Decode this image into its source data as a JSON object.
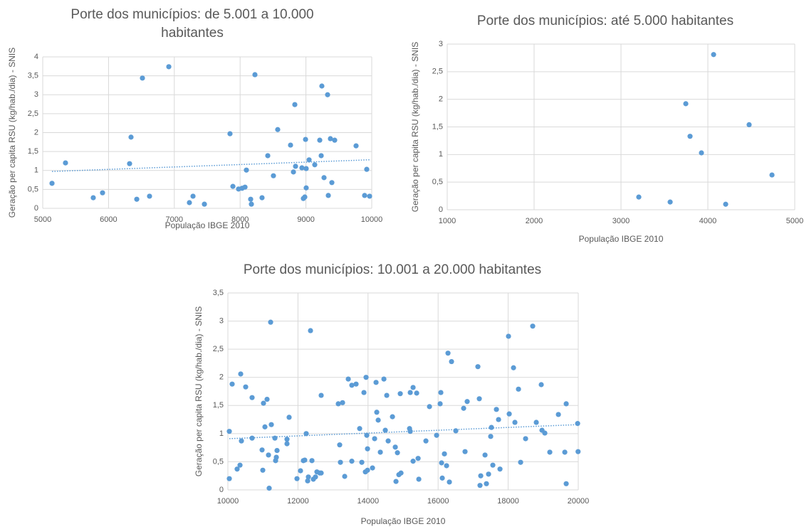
{
  "chart_data": [
    {
      "type": "scatter",
      "title": "Porte dos municípios: de 5.001 a 10.000 habitantes",
      "x_label": "População IBGE 2010",
      "y_label": "Geração per capita RSU (kg/hab./dia) - SNIS",
      "color": "#5b9bd5",
      "grid": true,
      "trendline": true,
      "xlim": [
        5000,
        10000
      ],
      "xticks": [
        5000,
        6000,
        7000,
        8000,
        9000,
        10000
      ],
      "ylim": [
        0,
        4
      ],
      "yticks": [
        0,
        {
          "value": 0.5,
          "label": "0,5"
        },
        1,
        {
          "value": 1.5,
          "label": "1,5"
        },
        2,
        {
          "value": 2.5,
          "label": "2,5"
        },
        3,
        {
          "value": 3.5,
          "label": "3,5"
        },
        4
      ],
      "x": [
        5141,
        5346,
        5768,
        5909,
        6320,
        6342,
        6429,
        6515,
        6623,
        6916,
        7229,
        7284,
        7457,
        7846,
        7890,
        7976,
        8030,
        8074,
        8095,
        8160,
        8171,
        8225,
        8333,
        8420,
        8506,
        8571,
        8766,
        8810,
        8831,
        8842,
        8939,
        8961,
        8983,
        8994,
        9004,
        9004,
        9048,
        9134,
        9210,
        9232,
        9242,
        9275,
        9329,
        9340,
        9372,
        9394,
        9437,
        9762,
        9892,
        9924,
        9968
      ],
      "values": [
        0.66,
        1.2,
        0.28,
        0.41,
        1.18,
        1.88,
        0.24,
        3.44,
        0.32,
        3.74,
        0.15,
        0.32,
        0.11,
        1.97,
        0.58,
        0.51,
        0.53,
        0.56,
        1.01,
        0.24,
        0.11,
        3.53,
        0.28,
        1.39,
        0.86,
        2.08,
        1.67,
        0.96,
        2.74,
        1.11,
        1.07,
        0.26,
        0.3,
        1.82,
        1.05,
        0.54,
        1.28,
        1.15,
        1.8,
        1.39,
        3.23,
        0.81,
        3.0,
        0.34,
        1.84,
        0.68,
        1.8,
        1.65,
        0.34,
        1.03,
        0.32
      ]
    },
    {
      "type": "scatter",
      "title": "Porte dos municípios: até 5.000 habitantes",
      "x_label": "População IBGE 2010",
      "y_label": "Geração per capita RSU (kg/hab./dia) - SNIS",
      "color": "#5b9bd5",
      "grid": true,
      "trendline": false,
      "xlim": [
        1000,
        5000
      ],
      "xticks": [
        1000,
        2000,
        3000,
        4000,
        5000
      ],
      "ylim": [
        0,
        3
      ],
      "yticks": [
        0,
        {
          "value": 0.5,
          "label": "0,5"
        },
        1,
        {
          "value": 1.5,
          "label": "1,5"
        },
        2,
        {
          "value": 2.5,
          "label": "2,5"
        },
        3
      ],
      "x": [
        3205,
        3566,
        3746,
        3795,
        3926,
        4066,
        4205,
        4475,
        4738
      ],
      "values": [
        0.23,
        0.14,
        1.92,
        1.33,
        1.03,
        2.81,
        0.1,
        1.54,
        0.63
      ]
    },
    {
      "type": "scatter",
      "title": "Porte dos municípios: 10.001 a 20.000 habitantes",
      "x_label": "População IBGE 2010",
      "y_label": "Geração per capita RSU (kg/hab./dia) - SNIS",
      "color": "#5b9bd5",
      "grid": true,
      "trendline": true,
      "xlim": [
        10000,
        20000
      ],
      "xticks": [
        10000,
        12000,
        14000,
        16000,
        18000,
        20000
      ],
      "ylim": [
        0,
        3.5
      ],
      "yticks": [
        0,
        {
          "value": 0.5,
          "label": "0,5"
        },
        1,
        {
          "value": 1.5,
          "label": "1,5"
        },
        2,
        {
          "value": 2.5,
          "label": "2,5"
        },
        3,
        {
          "value": 3.5,
          "label": "3,5"
        }
      ],
      "x": [
        10041,
        10041,
        10122,
        10264,
        10346,
        10366,
        10386,
        10508,
        10691,
        10691,
        10976,
        10996,
        11016,
        11057,
        11118,
        11159,
        11179,
        11220,
        11240,
        11342,
        11362,
        11383,
        11403,
        11687,
        11687,
        11748,
        11972,
        12073,
        12155,
        12195,
        12236,
        12277,
        12297,
        12358,
        12399,
        12439,
        12500,
        12541,
        12622,
        12663,
        12663,
        13151,
        13191,
        13212,
        13273,
        13334,
        13436,
        13537,
        13537,
        13659,
        13761,
        13822,
        13883,
        13924,
        13944,
        13964,
        13985,
        13985,
        14127,
        14188,
        14229,
        14249,
        14290,
        14351,
        14453,
        14493,
        14534,
        14575,
        14697,
        14778,
        14798,
        14839,
        14880,
        14920,
        14941,
        15185,
        15205,
        15205,
        15286,
        15286,
        15388,
        15429,
        15449,
        15652,
        15754,
        15957,
        16058,
        16078,
        16099,
        16119,
        16180,
        16241,
        16282,
        16322,
        16383,
        16505,
        16729,
        16769,
        16830,
        17135,
        17176,
        17196,
        17217,
        17339,
        17379,
        17440,
        17501,
        17522,
        17562,
        17664,
        17725,
        17766,
        18009,
        18030,
        18152,
        18192,
        18294,
        18355,
        18497,
        18700,
        18802,
        18944,
        18965,
        19046,
        19188,
        19433,
        19616,
        19656,
        19656,
        19982,
        19995
      ],
      "values": [
        1.04,
        0.2,
        1.88,
        0.37,
        0.44,
        2.06,
        0.87,
        1.83,
        1.64,
        0.92,
        0.71,
        0.35,
        1.54,
        1.12,
        1.61,
        0.62,
        0.03,
        2.98,
        1.16,
        0.92,
        0.52,
        0.58,
        0.7,
        0.82,
        0.9,
        1.29,
        0.2,
        0.34,
        0.52,
        0.53,
        1.0,
        0.16,
        0.23,
        2.83,
        0.52,
        0.19,
        0.23,
        0.32,
        0.3,
        1.68,
        0.3,
        1.53,
        0.8,
        0.49,
        1.55,
        0.24,
        1.97,
        1.86,
        0.51,
        1.88,
        1.09,
        0.49,
        1.73,
        0.32,
        2.0,
        0.97,
        0.35,
        0.73,
        0.39,
        0.91,
        1.91,
        1.38,
        1.24,
        0.67,
        1.97,
        1.06,
        1.68,
        0.87,
        1.3,
        0.76,
        0.15,
        0.66,
        0.27,
        1.71,
        0.3,
        1.09,
        1.73,
        1.04,
        1.82,
        0.51,
        1.72,
        0.56,
        0.19,
        0.87,
        1.48,
        0.97,
        1.53,
        1.73,
        0.48,
        0.21,
        0.64,
        0.43,
        2.43,
        0.14,
        2.28,
        1.05,
        1.45,
        0.68,
        1.57,
        2.19,
        1.62,
        0.08,
        0.25,
        0.62,
        0.11,
        0.28,
        0.95,
        1.11,
        0.44,
        1.43,
        1.25,
        0.37,
        2.73,
        1.35,
        2.17,
        1.2,
        1.79,
        0.49,
        0.91,
        2.91,
        1.2,
        1.87,
        1.06,
        1.01,
        0.67,
        1.34,
        0.67,
        1.53,
        0.11,
        1.18,
        0.68
      ]
    }
  ]
}
